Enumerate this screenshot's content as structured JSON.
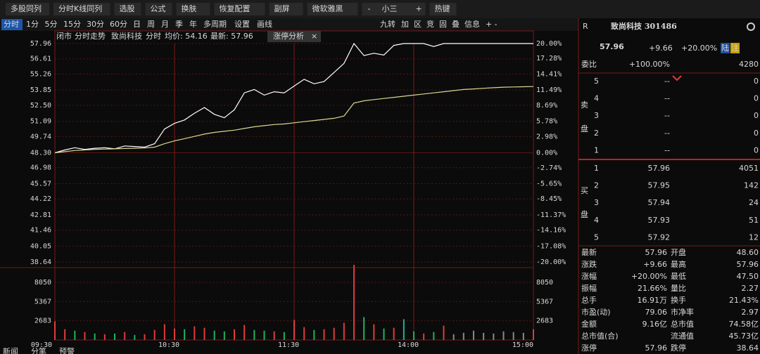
{
  "toolbar": {
    "buttons": [
      "多股同列",
      "分时K线同列",
      "选股",
      "公式",
      "换肤",
      "恢复配置",
      "副屏",
      "微软雅黑"
    ],
    "font_minus": "-",
    "font_size": "小三",
    "font_plus": "+",
    "hotkey": "热键"
  },
  "periods": [
    "分时",
    "1分",
    "5分",
    "15分",
    "30分",
    "60分",
    "日",
    "周",
    "月",
    "季",
    "年",
    "多周期",
    "设置",
    "画线"
  ],
  "tools": [
    "九转",
    "加",
    "区",
    "竞",
    "固",
    "叠",
    "信息",
    "+",
    "-"
  ],
  "chart_header": {
    "status": "闭市",
    "view": "分时走势",
    "name": "致尚科技",
    "mode": "分时",
    "avg": "均价: 54.16",
    "latest": "最新: 57.96",
    "tab": "涨停分析",
    "close": "×"
  },
  "chart": {
    "type": "line",
    "x": [
      0,
      5,
      10,
      15,
      20,
      25,
      30,
      35,
      40,
      45,
      50,
      55,
      60,
      65,
      70,
      75,
      80,
      85,
      90,
      95,
      100,
      105,
      110,
      115,
      120,
      125,
      130,
      135,
      140,
      145,
      150,
      155,
      160,
      165,
      170,
      175,
      180,
      185,
      190,
      195,
      200,
      205,
      210,
      215,
      220,
      225,
      230,
      235,
      240
    ],
    "xlim": [
      0,
      240
    ],
    "xticks": [
      {
        "value": 0,
        "label": "09:30"
      },
      {
        "value": 60,
        "label": "10:30"
      },
      {
        "value": 120,
        "label": "11:30"
      },
      {
        "value": 180,
        "label": "14:00"
      },
      {
        "value": 240,
        "label": "15:00"
      }
    ],
    "ylim": [
      38.64,
      57.96
    ],
    "yticks": [
      57.96,
      56.61,
      55.26,
      53.85,
      {
        "value": 52.5,
        "label": "52.50"
      },
      51.09,
      49.74,
      {
        "value": 48.3,
        "label": "48.30"
      },
      46.98,
      45.57,
      44.22,
      42.81,
      41.46,
      40.05,
      38.64
    ],
    "y2lim": [
      -20,
      20
    ],
    "y2ticks": [
      {
        "value": 20,
        "label": "20.00%"
      },
      {
        "value": 17.28,
        "label": "17.28%"
      },
      {
        "value": 14.41,
        "label": "14.41%"
      },
      {
        "value": 11.49,
        "label": "11.49%"
      },
      {
        "value": 8.69,
        "label": "8.69%"
      },
      {
        "value": 5.78,
        "label": "5.78%"
      },
      {
        "value": 2.98,
        "label": "2.98%"
      },
      {
        "value": 0,
        "label": "0.00%"
      },
      {
        "value": -2.74,
        "label": "-2.74%"
      },
      {
        "value": -5.65,
        "label": "-5.65%"
      },
      {
        "value": -8.45,
        "label": "-8.45%"
      },
      {
        "value": -11.37,
        "label": "-11.37%"
      },
      {
        "value": -14.16,
        "label": "-14.16%"
      },
      {
        "value": -17.08,
        "label": "-17.08%"
      },
      {
        "value": -20,
        "label": "-20.00%"
      }
    ],
    "series": [
      {
        "color": "#ffffff",
        "values": [
          48.3,
          48.55,
          48.75,
          48.6,
          48.7,
          48.75,
          48.65,
          48.9,
          48.85,
          48.8,
          49.1,
          50.4,
          50.9,
          51.2,
          51.8,
          52.3,
          51.7,
          51.4,
          52.1,
          53.6,
          53.9,
          53.4,
          53.7,
          53.6,
          54.2,
          54.8,
          54.4,
          54.6,
          55.4,
          56.2,
          57.96,
          56.9,
          57.1,
          56.95,
          57.8,
          57.96,
          57.96,
          57.96,
          57.7,
          57.96,
          57.96,
          57.96,
          57.96,
          57.96,
          57.96,
          57.96,
          57.96,
          57.96,
          57.96
        ]
      },
      {
        "color": "#d8d890",
        "values": [
          48.3,
          48.4,
          48.5,
          48.55,
          48.6,
          48.62,
          48.65,
          48.68,
          48.7,
          48.72,
          48.8,
          49.1,
          49.35,
          49.55,
          49.75,
          49.95,
          50.1,
          50.2,
          50.3,
          50.45,
          50.6,
          50.7,
          50.8,
          50.85,
          50.95,
          51.05,
          51.15,
          51.25,
          51.35,
          51.55,
          52.7,
          52.9,
          53.0,
          53.1,
          53.2,
          53.3,
          53.4,
          53.5,
          53.6,
          53.7,
          53.8,
          53.9,
          53.95,
          54.0,
          54.05,
          54.1,
          54.12,
          54.14,
          54.16
        ]
      }
    ],
    "volume": {
      "ylim": [
        0,
        10900
      ],
      "yticks": [
        8050,
        5367,
        2683
      ],
      "values": [
        2600,
        1500,
        1300,
        1100,
        900,
        800,
        900,
        1100,
        700,
        800,
        1400,
        2200,
        1600,
        1500,
        1900,
        1700,
        1300,
        1200,
        1500,
        2100,
        1400,
        1300,
        1200,
        1100,
        2800,
        1800,
        1400,
        1500,
        1700,
        2400,
        10500,
        3200,
        2200,
        1600,
        1700,
        2900,
        1200,
        900,
        1100,
        2000,
        800,
        1000,
        1300,
        1000,
        900,
        1200,
        1100,
        1000,
        1500
      ],
      "colors": [
        "#e03a3a",
        "#e03a3a",
        "#20b060",
        "#e03a3a",
        "#20b060",
        "#e03a3a",
        "#20b060",
        "#e03a3a",
        "#20b060",
        "#e03a3a",
        "#e03a3a",
        "#e03a3a",
        "#e03a3a",
        "#20b060",
        "#e03a3a",
        "#e03a3a",
        "#20b060",
        "#20b060",
        "#e03a3a",
        "#e03a3a",
        "#20b060",
        "#20b060",
        "#e03a3a",
        "#20b060",
        "#e03a3a",
        "#e03a3a",
        "#20b060",
        "#e03a3a",
        "#e03a3a",
        "#e03a3a",
        "#e03a3a",
        "#20b060",
        "#e03a3a",
        "#20b060",
        "#e03a3a",
        "#20b0a0",
        "#20b060",
        "#e03a3a",
        "#20b060",
        "#e03a3a",
        "#888888",
        "#888888",
        "#888888",
        "#888888",
        "#888888",
        "#888888",
        "#888888",
        "#888888",
        "#e03a3a"
      ]
    }
  },
  "quote": {
    "mark": "R",
    "title": "致尚科技 301486",
    "price": "57.96",
    "change": "+9.66",
    "pct": "+20.00%",
    "badges": [
      "陆",
      "注"
    ]
  },
  "weibi": {
    "label": "委比",
    "value": "+100.00%",
    "amount": "4280"
  },
  "sell_label": [
    "卖",
    "盘"
  ],
  "buy_label": [
    "买",
    "盘"
  ],
  "sell": [
    {
      "level": "5",
      "price": "--",
      "volume": "0"
    },
    {
      "level": "4",
      "price": "--",
      "volume": "0"
    },
    {
      "level": "3",
      "price": "--",
      "volume": "0"
    },
    {
      "level": "2",
      "price": "--",
      "volume": "0"
    },
    {
      "level": "1",
      "price": "--",
      "volume": "0"
    }
  ],
  "buy": [
    {
      "level": "1",
      "price": "57.96",
      "volume": "4051"
    },
    {
      "level": "2",
      "price": "57.95",
      "volume": "142"
    },
    {
      "level": "3",
      "price": "57.94",
      "volume": "24"
    },
    {
      "level": "4",
      "price": "57.93",
      "volume": "51"
    },
    {
      "level": "5",
      "price": "57.92",
      "volume": "12"
    }
  ],
  "stats": [
    [
      {
        "label": "最新",
        "value": "57.96",
        "color": "#ff4040"
      },
      {
        "label": "开盘",
        "value": "48.60",
        "color": "#ff4040"
      }
    ],
    [
      {
        "label": "涨跌",
        "value": "+9.66",
        "color": "#ff4040"
      },
      {
        "label": "最高",
        "value": "57.96",
        "color": "#ff4040"
      }
    ],
    [
      {
        "label": "涨幅",
        "value": "+20.00%",
        "color": "#ff4040"
      },
      {
        "label": "最低",
        "value": "47.50",
        "color": "#30c060"
      }
    ],
    [
      {
        "label": "振幅",
        "value": "21.66%",
        "color": "#e0e0e0"
      },
      {
        "label": "量比",
        "value": "2.27",
        "color": "#ff4040"
      }
    ],
    [
      {
        "label": "总手",
        "value": "16.91万",
        "color": "#e0e0e0"
      },
      {
        "label": "换手",
        "value": "21.43%",
        "color": "#e0e0e0"
      }
    ],
    [
      {
        "label": "市盈(动)",
        "value": "79.06",
        "color": "#e0e0e0"
      },
      {
        "label": "市净率",
        "value": "2.97",
        "color": "#e0e0e0"
      }
    ],
    [
      {
        "label": "金额",
        "value": "9.16亿",
        "color": "#e0e0e0"
      },
      {
        "label": "总市值",
        "value": "74.58亿",
        "color": "#e0e0e0"
      }
    ],
    [
      {
        "label": "总市值(合)"
      },
      {
        "label": "流通值",
        "value": "45.73亿",
        "color": "#e0e0e0"
      }
    ],
    [
      {
        "label": "涨停",
        "value": "57.96",
        "color": "#ff4040"
      },
      {
        "label": "跌停",
        "value": "38.64",
        "color": "#30c060"
      }
    ]
  ],
  "bottom_tabs": [
    "新闻",
    "分笔",
    "预警"
  ]
}
